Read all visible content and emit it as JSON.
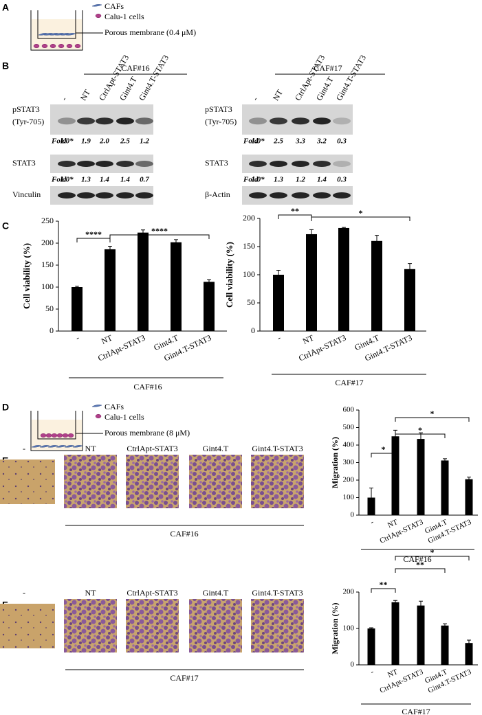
{
  "panel_labels": [
    "A",
    "B",
    "C",
    "D",
    "E",
    "F"
  ],
  "schematics": [
    {
      "legend": [
        "CAFs",
        "Calu-1 cells"
      ],
      "membrane": "Porous membrane (0.4 μM)"
    },
    {
      "legend": [
        "CAFs",
        "Calu-1 cells"
      ],
      "membrane": "Porous membrane (8 μM)"
    }
  ],
  "blot_lanes": [
    "-",
    "NT",
    "CtrlApt-STAT3",
    "Gint4.T",
    "Gint4.T-STAT3"
  ],
  "blots": [
    {
      "group": "CAF#16",
      "rows": [
        [
          "pSTAT3",
          "(Tyr-705)"
        ],
        [
          "STAT3"
        ],
        [
          "Vinculin"
        ]
      ],
      "fold_label": "Fold",
      "folds": [
        [
          "1.0*",
          "1.9",
          "2.0",
          "2.5",
          "1.2"
        ],
        [
          "1.0*",
          "1.3",
          "1.4",
          "1.4",
          "0.7"
        ]
      ]
    },
    {
      "group": "CAF#17",
      "rows": [
        [
          "pSTAT3",
          "(Tyr-705)"
        ],
        [
          "STAT3"
        ],
        [
          "β-Actin"
        ]
      ],
      "fold_label": "Fold",
      "folds": [
        [
          "1.0*",
          "2.5",
          "3.3",
          "3.2",
          "0.3"
        ],
        [
          "1.0*",
          "1.3",
          "1.2",
          "1.4",
          "0.3"
        ]
      ]
    }
  ],
  "micrographs": [
    {
      "lanes": [
        "-",
        "NT",
        "CtrlApt-STAT3",
        "Gint4.T",
        "Gint4.T-STAT3"
      ],
      "group": "CAF#16"
    },
    {
      "lanes": [
        "-",
        "NT",
        "CtrlApt-STAT3",
        "Gint4.T",
        "Gint4.T-STAT3"
      ],
      "group": "CAF#17"
    }
  ],
  "chart_data": [
    {
      "type": "bar",
      "ylabel": "Cell viability (%)",
      "group": "CAF#16",
      "color": "#000000",
      "categories": [
        "-",
        "NT",
        "CtrlApt-STAT3",
        "Gint4.T",
        "Gint4.T-STAT3"
      ],
      "values": [
        100,
        186,
        224,
        202,
        112
      ],
      "errors": [
        2,
        7,
        6,
        6,
        5
      ],
      "ylim": [
        0,
        250
      ],
      "yticks": [
        0,
        50,
        100,
        150,
        200,
        250
      ],
      "annotations": [
        "****",
        "****"
      ]
    },
    {
      "type": "bar",
      "ylabel": "Cell viability (%)",
      "group": "CAF#17",
      "color": "#000000",
      "categories": [
        "-",
        "NT",
        "CtrlApt-STAT3",
        "Gint4.T",
        "Gint4.T-STAT3"
      ],
      "values": [
        100,
        172,
        183,
        160,
        110
      ],
      "errors": [
        8,
        8,
        1,
        10,
        10
      ],
      "ylim": [
        0,
        200
      ],
      "yticks": [
        0,
        50,
        100,
        150,
        200
      ],
      "annotations": [
        "**",
        "*"
      ]
    },
    {
      "type": "bar",
      "ylabel": "Migration (%)",
      "group": "CAF#16",
      "color": "#000000",
      "categories": [
        "-",
        "NT",
        "CtrlApt-STAT3",
        "Gint4.T",
        "Gint4.T-STAT3"
      ],
      "values": [
        100,
        450,
        435,
        312,
        205
      ],
      "errors": [
        55,
        35,
        35,
        10,
        12
      ],
      "ylim": [
        0,
        600
      ],
      "yticks": [
        0,
        100,
        200,
        300,
        400,
        500,
        600
      ],
      "annotations": [
        "*",
        "*",
        "*"
      ]
    },
    {
      "type": "bar",
      "ylabel": "Migration (%)",
      "group": "CAF#17",
      "color": "#000000",
      "categories": [
        "-",
        "NT",
        "CtrlApt-STAT3",
        "Gint4.T",
        "Gint4.T-STAT3"
      ],
      "values": [
        100,
        172,
        163,
        108,
        60
      ],
      "errors": [
        2,
        5,
        12,
        5,
        8
      ],
      "ylim": [
        0,
        200
      ],
      "yticks": [
        0,
        100,
        200
      ],
      "annotations": [
        "**",
        "*",
        "**"
      ]
    }
  ]
}
